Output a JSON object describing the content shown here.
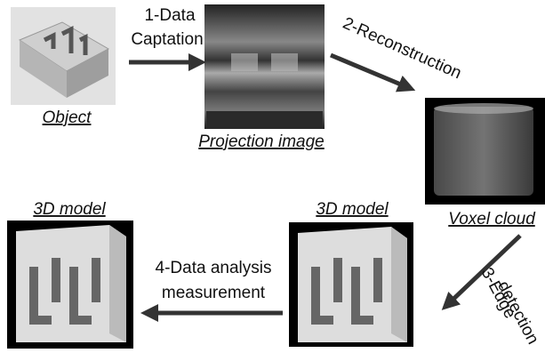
{
  "nodes": [
    {
      "label": "Object"
    },
    {
      "label": "Projection image"
    },
    {
      "label": "Voxel cloud"
    },
    {
      "label": "3D model"
    },
    {
      "label": "3D model"
    }
  ],
  "steps": [
    {
      "lines": [
        "1-Data",
        "Captation"
      ]
    },
    {
      "lines": [
        "2-Reconstruction"
      ]
    },
    {
      "lines": [
        "3-Edge",
        "detection"
      ]
    },
    {
      "lines": [
        "4-Data analysis",
        "measurement"
      ]
    }
  ]
}
